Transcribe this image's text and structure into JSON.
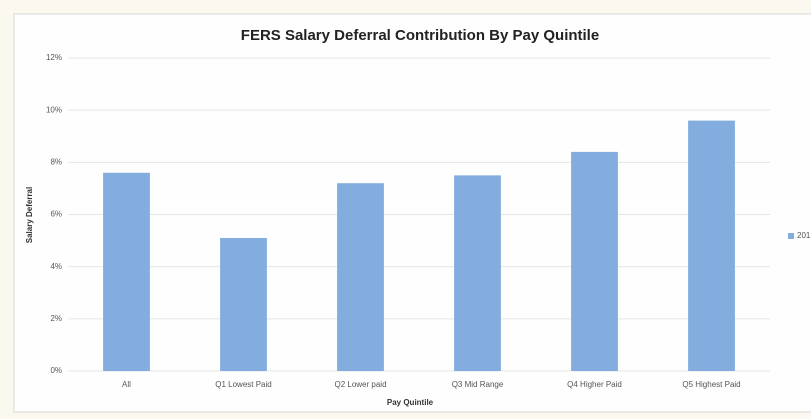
{
  "chart_data": {
    "type": "bar",
    "title": "FERS Salary Deferral Contribution By Pay Quintile",
    "x_label": "Pay Quintile",
    "y_label": "Salary Deferral",
    "categories": [
      "All",
      "Q1 Lowest Paid",
      "Q2 Lower paid",
      "Q3 Mid Range",
      "Q4 Higher Paid",
      "Q5 Highest Paid"
    ],
    "series": [
      {
        "name": "201",
        "color": "#83acdf",
        "values": [
          7.6,
          5.1,
          7.2,
          7.5,
          8.4,
          9.6
        ]
      }
    ],
    "ylim": [
      0,
      12
    ],
    "yticks": [
      {
        "value": 0,
        "label": "0%"
      },
      {
        "value": 2,
        "label": "2%"
      },
      {
        "value": 4,
        "label": "4%"
      },
      {
        "value": 6,
        "label": "6%"
      },
      {
        "value": 8,
        "label": "8%"
      },
      {
        "value": 10,
        "label": "10%"
      },
      {
        "value": 12,
        "label": "12%"
      }
    ],
    "grid": true,
    "legend": "right"
  }
}
